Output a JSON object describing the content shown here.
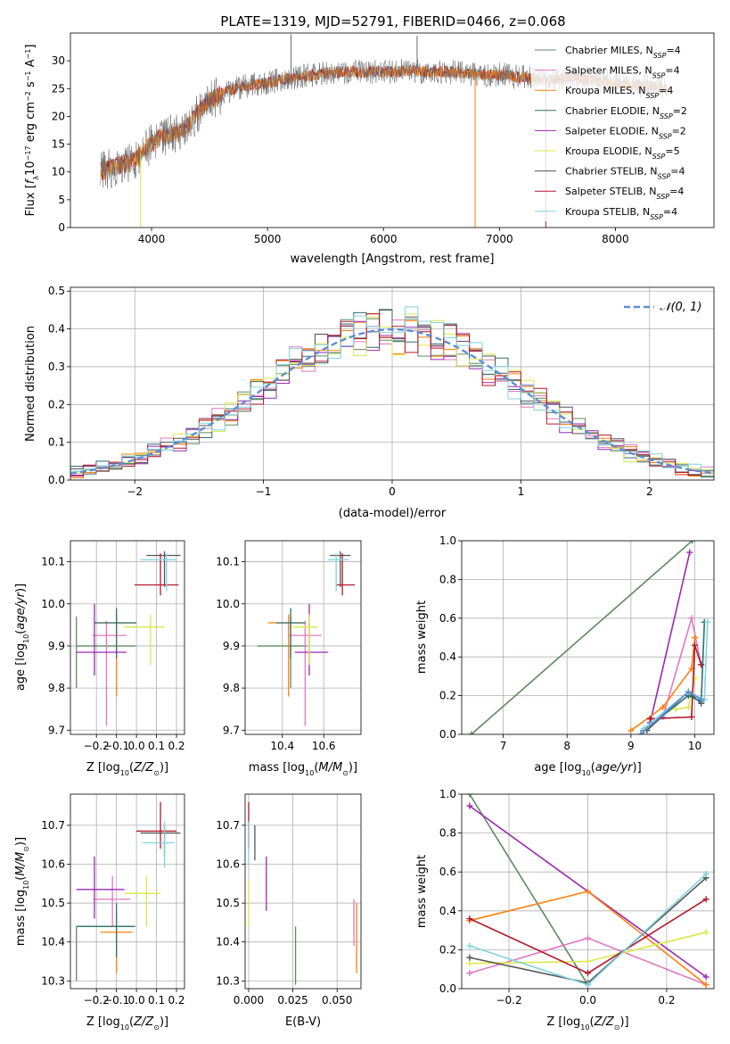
{
  "title": "PLATE=1319, MJD=52791, FIBERID=0466, z=0.068",
  "colors": {
    "chabrier_miles": "#5f8a5f",
    "salpeter_miles": "#e377c2",
    "kroupa_miles": "#ff7f0e",
    "chabrier_elodie": "#2f6f6f",
    "salpeter_elodie": "#9c27b0",
    "kroupa_elodie": "#dbe84a",
    "chabrier_stelib": "#555555",
    "salpeter_stelib": "#b2182b",
    "kroupa_stelib": "#7fd3e0",
    "normal": "#5b8fd6",
    "spectrum_grey": "#666666"
  },
  "models": [
    {
      "key": "chabrier_miles",
      "label": "Chabrier MILES, N",
      "nssp": "=4"
    },
    {
      "key": "salpeter_miles",
      "label": "Salpeter MILES, N",
      "nssp": "=4"
    },
    {
      "key": "kroupa_miles",
      "label": "Kroupa MILES, N",
      "nssp": "=4"
    },
    {
      "key": "chabrier_elodie",
      "label": "Chabrier ELODIE, N",
      "nssp": "=2"
    },
    {
      "key": "salpeter_elodie",
      "label": "Salpeter ELODIE, N",
      "nssp": "=2"
    },
    {
      "key": "kroupa_elodie",
      "label": "Kroupa ELODIE, N",
      "nssp": "=5"
    },
    {
      "key": "chabrier_stelib",
      "label": "Chabrier STELIB, N",
      "nssp": "=4"
    },
    {
      "key": "salpeter_stelib",
      "label": "Salpeter STELIB, N",
      "nssp": "=4"
    },
    {
      "key": "kroupa_stelib",
      "label": "Kroupa STELIB, N",
      "nssp": "=4"
    }
  ],
  "chart_data": [
    {
      "type": "line",
      "id": "spectrum",
      "xlabel": "wavelength [Angstrom, rest frame]",
      "ylabel": "Flux [f_λ 10^-17 erg cm^-2 s^-1 A^-1]",
      "xlim": [
        3300,
        8850
      ],
      "ylim": [
        0,
        35
      ],
      "xticks": [
        4000,
        5000,
        6000,
        7000,
        8000
      ],
      "yticks": [
        0,
        5,
        10,
        15,
        20,
        25,
        30
      ],
      "continuum": {
        "x": [
          3550,
          3700,
          3850,
          3950,
          4050,
          4200,
          4300,
          4450,
          4600,
          4800,
          5000,
          5200,
          5400,
          5600,
          5800,
          6000,
          6200,
          6400,
          6600,
          6800,
          7000,
          7200,
          7400,
          7600,
          7800,
          8000,
          8200,
          8350,
          8450
        ],
        "y": [
          10,
          11,
          12,
          14,
          16,
          17,
          18,
          22,
          24,
          25.5,
          26,
          27,
          27.5,
          28,
          28,
          28,
          28.2,
          28,
          28,
          27.5,
          27.5,
          27,
          26.5,
          27,
          26.5,
          26,
          25.5,
          25.5,
          24.5
        ]
      },
      "spikes_up": [
        {
          "x": 5203,
          "y": 34.8
        },
        {
          "x": 6290,
          "y": 34.5
        }
      ],
      "spikes_down": [
        {
          "x": 3905,
          "y": 0
        },
        {
          "x": 6790,
          "y": 0
        },
        {
          "x": 7400,
          "y": 0
        }
      ]
    },
    {
      "type": "area",
      "id": "residual-histogram",
      "xlabel": "(data-model)/error",
      "ylabel": "Normed distribution",
      "xlim": [
        -2.5,
        2.5
      ],
      "ylim": [
        0,
        0.51
      ],
      "xticks": [
        -2,
        -1,
        0,
        1,
        2
      ],
      "yticks": [
        0.0,
        0.1,
        0.2,
        0.3,
        0.4,
        0.5
      ],
      "bin_width": 0.1,
      "legend": "N(0,1)",
      "legend_position": "top-right"
    },
    {
      "type": "scatter",
      "id": "age-vs-metallicity",
      "xlabel": "Z [log10(Z/Zsun)]",
      "ylabel": "age [log10(age/yr)]",
      "xlim": [
        -0.33,
        0.24
      ],
      "ylim": [
        9.69,
        10.15
      ],
      "xticks": [
        -0.2,
        -0.1,
        0.0,
        0.1,
        0.2
      ],
      "yticks": [
        9.7,
        9.8,
        9.9,
        10.0,
        10.1
      ],
      "points": [
        {
          "model": "chabrier_miles",
          "x": -0.3,
          "xlo": -0.3,
          "xhi": -0.005,
          "y": 9.9,
          "ylo": 9.8,
          "yhi": 9.97
        },
        {
          "model": "salpeter_miles",
          "x": -0.15,
          "xlo": -0.22,
          "xhi": -0.05,
          "y": 9.925,
          "ylo": 9.71,
          "yhi": 9.96
        },
        {
          "model": "kroupa_miles",
          "x": -0.1,
          "xlo": -0.21,
          "xhi": -0.005,
          "y": 9.955,
          "ylo": 9.78,
          "yhi": 9.975
        },
        {
          "model": "chabrier_elodie",
          "x": -0.1,
          "xlo": -0.21,
          "xhi": 0.0,
          "y": 9.955,
          "ylo": 9.87,
          "yhi": 9.99
        },
        {
          "model": "salpeter_elodie",
          "x": -0.21,
          "xlo": -0.3,
          "xhi": -0.05,
          "y": 9.885,
          "ylo": 9.83,
          "yhi": 10.0
        },
        {
          "model": "kroupa_elodie",
          "x": 0.07,
          "xlo": -0.06,
          "xhi": 0.14,
          "y": 9.945,
          "ylo": 9.855,
          "yhi": 9.975
        },
        {
          "model": "chabrier_stelib",
          "x": 0.14,
          "xlo": 0.05,
          "xhi": 0.22,
          "y": 10.115,
          "ylo": 10.04,
          "yhi": 10.125
        },
        {
          "model": "salpeter_stelib",
          "x": 0.12,
          "xlo": -0.01,
          "xhi": 0.21,
          "y": 10.045,
          "ylo": 10.02,
          "yhi": 10.12
        },
        {
          "model": "kroupa_stelib",
          "x": 0.15,
          "xlo": 0.02,
          "xhi": 0.2,
          "y": 10.105,
          "ylo": 10.03,
          "yhi": 10.12
        }
      ]
    },
    {
      "type": "scatter",
      "id": "age-vs-mass",
      "xlabel": "mass [log10(M/Msun)]",
      "ylabel": "",
      "xlim": [
        10.22,
        10.78
      ],
      "ylim": [
        9.69,
        10.15
      ],
      "xticks": [
        10.4,
        10.6
      ],
      "yticks": [
        9.7,
        9.8,
        9.9,
        10.0,
        10.1
      ],
      "points": [
        {
          "model": "chabrier_miles",
          "x": 10.44,
          "xlo": 10.28,
          "xhi": 10.52,
          "y": 9.9,
          "ylo": 9.8,
          "yhi": 9.97
        },
        {
          "model": "salpeter_miles",
          "x": 10.51,
          "xlo": 10.43,
          "xhi": 10.59,
          "y": 9.925,
          "ylo": 9.71,
          "yhi": 9.96
        },
        {
          "model": "kroupa_miles",
          "x": 10.43,
          "xlo": 10.33,
          "xhi": 10.51,
          "y": 9.955,
          "ylo": 9.78,
          "yhi": 9.975
        },
        {
          "model": "chabrier_elodie",
          "x": 10.44,
          "xlo": 10.37,
          "xhi": 10.51,
          "y": 9.955,
          "ylo": 9.87,
          "yhi": 9.99
        },
        {
          "model": "salpeter_elodie",
          "x": 10.53,
          "xlo": 10.46,
          "xhi": 10.62,
          "y": 9.885,
          "ylo": 9.83,
          "yhi": 10.0
        },
        {
          "model": "kroupa_elodie",
          "x": 10.53,
          "xlo": 10.45,
          "xhi": 10.57,
          "y": 9.945,
          "ylo": 9.855,
          "yhi": 9.975
        },
        {
          "model": "chabrier_stelib",
          "x": 10.68,
          "xlo": 10.63,
          "xhi": 10.73,
          "y": 10.115,
          "ylo": 10.04,
          "yhi": 10.125
        },
        {
          "model": "salpeter_stelib",
          "x": 10.69,
          "xlo": 10.66,
          "xhi": 10.75,
          "y": 10.045,
          "ylo": 10.02,
          "yhi": 10.12
        },
        {
          "model": "kroupa_stelib",
          "x": 10.66,
          "xlo": 10.62,
          "xhi": 10.72,
          "y": 10.105,
          "ylo": 10.03,
          "yhi": 10.12
        }
      ]
    },
    {
      "type": "line",
      "id": "weight-vs-age",
      "xlabel": "age [log10(age/yr)]",
      "ylabel": "mass weight",
      "xlim": [
        6.35,
        10.3
      ],
      "ylim": [
        0,
        1
      ],
      "xticks": [
        7,
        8,
        9,
        10
      ],
      "yticks": [
        0.0,
        0.2,
        0.4,
        0.6,
        0.8,
        1.0
      ],
      "series": [
        {
          "model": "chabrier_miles",
          "x": [
            6.5,
            9.96
          ],
          "y": [
            0.0,
            1.0
          ]
        },
        {
          "model": "salpeter_elodie",
          "x": [
            9.3,
            9.92
          ],
          "y": [
            0.06,
            0.94
          ]
        },
        {
          "model": "salpeter_miles",
          "x": [
            9.2,
            9.5,
            9.95,
            10.1
          ],
          "y": [
            0.02,
            0.09,
            0.6,
            0.36
          ]
        },
        {
          "model": "kroupa_miles",
          "x": [
            9.0,
            9.5,
            9.95,
            10.0
          ],
          "y": [
            0.02,
            0.14,
            0.34,
            0.5
          ]
        },
        {
          "model": "kroupa_elodie",
          "x": [
            9.7,
            9.9,
            10.0
          ],
          "y": [
            0.13,
            0.14,
            0.29
          ]
        },
        {
          "model": "salpeter_stelib",
          "x": [
            9.3,
            9.95,
            10.0,
            10.1
          ],
          "y": [
            0.08,
            0.09,
            0.46,
            0.36
          ]
        },
        {
          "model": "chabrier_stelib",
          "x": [
            9.25,
            9.9,
            10.1
          ],
          "y": [
            0.02,
            0.22,
            0.16
          ]
        },
        {
          "model": "chabrier_elodie",
          "x": [
            9.2,
            9.9,
            10.1,
            10.15
          ],
          "y": [
            0.02,
            0.2,
            0.17,
            0.58
          ]
        },
        {
          "model": "kroupa_stelib",
          "x": [
            9.2,
            9.9,
            10.15,
            10.2
          ],
          "y": [
            0.03,
            0.22,
            0.18,
            0.58
          ]
        },
        {
          "model": "normal",
          "x": [
            9.15,
            9.9,
            10.1
          ],
          "y": [
            0.0,
            0.22,
            0.18
          ]
        }
      ]
    },
    {
      "type": "scatter",
      "id": "mass-vs-metallicity",
      "xlabel": "Z [log10(Z/Zsun)]",
      "ylabel": "mass [log10(M/Msun)]",
      "xlim": [
        -0.33,
        0.24
      ],
      "ylim": [
        10.28,
        10.78
      ],
      "xticks": [
        -0.2,
        -0.1,
        0.0,
        0.1,
        0.2
      ],
      "yticks": [
        10.3,
        10.4,
        10.5,
        10.6,
        10.7
      ],
      "points": [
        {
          "model": "chabrier_miles",
          "x": -0.3,
          "xlo": -0.3,
          "xhi": -0.005,
          "y": 10.44,
          "ylo": 10.3,
          "yhi": 10.44
        },
        {
          "model": "salpeter_miles",
          "x": -0.12,
          "xlo": -0.21,
          "xhi": -0.03,
          "y": 10.51,
          "ylo": 10.44,
          "yhi": 10.57
        },
        {
          "model": "kroupa_miles",
          "x": -0.1,
          "xlo": -0.18,
          "xhi": -0.02,
          "y": 10.425,
          "ylo": 10.32,
          "yhi": 10.47
        },
        {
          "model": "chabrier_elodie",
          "x": -0.1,
          "xlo": -0.3,
          "xhi": -0.01,
          "y": 10.44,
          "ylo": 10.36,
          "yhi": 10.5
        },
        {
          "model": "salpeter_elodie",
          "x": -0.21,
          "xlo": -0.3,
          "xhi": -0.06,
          "y": 10.535,
          "ylo": 10.46,
          "yhi": 10.62
        },
        {
          "model": "kroupa_elodie",
          "x": 0.05,
          "xlo": -0.06,
          "xhi": 0.12,
          "y": 10.525,
          "ylo": 10.44,
          "yhi": 10.57
        },
        {
          "model": "chabrier_stelib",
          "x": 0.14,
          "xlo": 0.02,
          "xhi": 0.22,
          "y": 10.68,
          "ylo": 10.62,
          "yhi": 10.7
        },
        {
          "model": "salpeter_stelib",
          "x": 0.12,
          "xlo": 0.0,
          "xhi": 0.2,
          "y": 10.685,
          "ylo": 10.64,
          "yhi": 10.76
        },
        {
          "model": "kroupa_stelib",
          "x": 0.14,
          "xlo": 0.03,
          "xhi": 0.19,
          "y": 10.655,
          "ylo": 10.59,
          "yhi": 10.71
        }
      ]
    },
    {
      "type": "scatter",
      "id": "mass-vs-ebv",
      "xlabel": "E(B-V)",
      "ylabel": "",
      "xlim": [
        -0.002,
        0.0635
      ],
      "ylim": [
        10.28,
        10.78
      ],
      "xticks": [
        0.0,
        0.025,
        0.05
      ],
      "xticklabels": [
        "0.000",
        "0.025",
        "0.050"
      ],
      "yticks": [
        10.3,
        10.4,
        10.5,
        10.6,
        10.7
      ],
      "points": [
        {
          "model": "salpeter_stelib",
          "x": 0.0,
          "y": 10.7,
          "ylo": 10.64,
          "yhi": 10.76
        },
        {
          "model": "kroupa_stelib",
          "x": 0.0,
          "y": 10.66,
          "ylo": 10.6,
          "yhi": 10.71
        },
        {
          "model": "chabrier_stelib",
          "x": 0.0035,
          "y": 10.66,
          "ylo": 10.61,
          "yhi": 10.7
        },
        {
          "model": "kroupa_elodie",
          "x": 0.0,
          "y": 10.5,
          "ylo": 10.44,
          "yhi": 10.56
        },
        {
          "model": "salpeter_elodie",
          "x": 0.01,
          "y": 10.55,
          "ylo": 10.48,
          "yhi": 10.62
        },
        {
          "model": "chabrier_miles",
          "x": 0.0265,
          "y": 10.37,
          "ylo": 10.29,
          "yhi": 10.44
        },
        {
          "model": "salpeter_miles",
          "x": 0.0595,
          "y": 10.45,
          "ylo": 10.39,
          "yhi": 10.51
        },
        {
          "model": "kroupa_miles",
          "x": 0.061,
          "y": 10.41,
          "ylo": 10.32,
          "yhi": 10.5
        }
      ]
    },
    {
      "type": "line",
      "id": "weight-vs-metallicity",
      "xlabel": "Z [log10(Z/Zsun)]",
      "ylabel": "mass weight",
      "xlim": [
        -0.32,
        0.32
      ],
      "ylim": [
        0,
        1
      ],
      "xticks": [
        -0.2,
        0.0,
        0.2
      ],
      "yticks": [
        0.0,
        0.2,
        0.4,
        0.6,
        0.8,
        1.0
      ],
      "series": [
        {
          "model": "chabrier_miles",
          "x": [
            -0.3,
            0.0
          ],
          "y": [
            1.0,
            0.02
          ]
        },
        {
          "model": "salpeter_elodie",
          "x": [
            -0.3,
            0.3
          ],
          "y": [
            0.94,
            0.06
          ]
        },
        {
          "model": "salpeter_miles",
          "x": [
            -0.3,
            0.0,
            0.3
          ],
          "y": [
            0.08,
            0.26,
            0.02
          ]
        },
        {
          "model": "kroupa_miles",
          "x": [
            -0.3,
            0.0,
            0.3
          ],
          "y": [
            0.35,
            0.5,
            0.02
          ]
        },
        {
          "model": "kroupa_elodie",
          "x": [
            -0.3,
            0.0,
            0.3
          ],
          "y": [
            0.13,
            0.14,
            0.29
          ]
        },
        {
          "model": "salpeter_stelib",
          "x": [
            -0.3,
            0.0,
            0.3
          ],
          "y": [
            0.36,
            0.08,
            0.46
          ]
        },
        {
          "model": "chabrier_stelib",
          "x": [
            -0.3,
            0.0,
            0.3
          ],
          "y": [
            0.16,
            0.03,
            0.57
          ]
        },
        {
          "model": "kroupa_stelib",
          "x": [
            -0.3,
            0.0,
            0.3
          ],
          "y": [
            0.22,
            0.02,
            0.59
          ]
        }
      ]
    }
  ]
}
